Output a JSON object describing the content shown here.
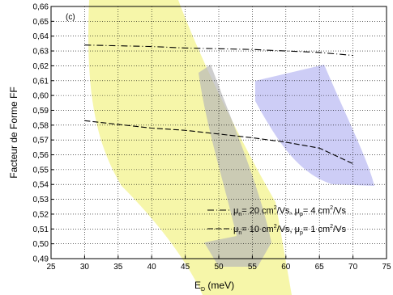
{
  "chart_data": {
    "type": "line",
    "panel_label": "(c)",
    "xlabel": {
      "main": "E",
      "sub": "D",
      "unit": " (meV)"
    },
    "ylabel": "Facteur de Forme FF",
    "xlim": [
      25,
      75
    ],
    "ylim": [
      0.49,
      0.66
    ],
    "x_ticks": [
      "25",
      "30",
      "35",
      "40",
      "45",
      "50",
      "55",
      "60",
      "65",
      "70",
      "75"
    ],
    "y_ticks": [
      "0,49",
      "0,50",
      "0,51",
      "0,52",
      "0,53",
      "0,54",
      "0,55",
      "0,56",
      "0,57",
      "0,58",
      "0,59",
      "0,60",
      "0,61",
      "0,62",
      "0,63",
      "0,64",
      "0,65",
      "0,66"
    ],
    "grid": true,
    "legend_position": "bottom-right",
    "series": [
      {
        "legend_parts": [
          "μ",
          "n",
          "= 20 cm",
          "2",
          "/Vs, μ",
          "p",
          "= 4 cm",
          "2",
          "/Vs"
        ],
        "style": "dash-dot",
        "color": "#000000",
        "x": [
          30,
          35,
          40,
          45,
          50,
          55,
          60,
          65,
          70
        ],
        "y": [
          0.634,
          0.6335,
          0.633,
          0.632,
          0.6315,
          0.631,
          0.63,
          0.629,
          0.627
        ]
      },
      {
        "legend_parts": [
          "μ",
          "n",
          "= 10 cm",
          "2",
          "/Vs, μ",
          "p",
          "= 1 cm",
          "2",
          "/Vs"
        ],
        "style": "dashed",
        "color": "#000000",
        "x": [
          30,
          35,
          40,
          45,
          50,
          55,
          60,
          65,
          70
        ],
        "y": [
          0.583,
          0.5805,
          0.578,
          0.5765,
          0.574,
          0.5715,
          0.5685,
          0.5645,
          0.554
        ]
      }
    ],
    "background_colors": {
      "yellow": "#f5f5a0",
      "blue": "#c8c8f5",
      "gray": "#b9b9b9"
    }
  }
}
